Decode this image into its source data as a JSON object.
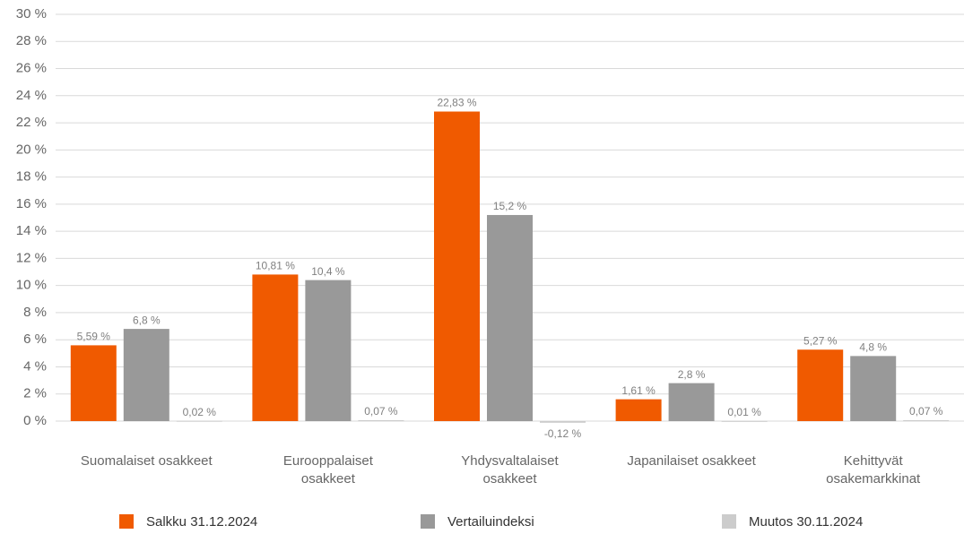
{
  "chart_data": {
    "type": "bar",
    "categories": [
      "Suomalaiset osakkeet",
      "Eurooppalaiset osakkeet",
      "Yhdysvaltalaiset osakkeet",
      "Japanilaiset osakkeet",
      "Kehittyvät osakemarkkinat"
    ],
    "series": [
      {
        "name": "Salkku 31.12.2024",
        "color": "#f05a00",
        "values": [
          5.59,
          10.81,
          22.83,
          1.61,
          5.27
        ],
        "value_labels": [
          "5,59 %",
          "10,81 %",
          "22,83 %",
          "1,61 %",
          "5,27 %"
        ]
      },
      {
        "name": "Vertailuindeksi",
        "color": "#999999",
        "values": [
          6.8,
          10.4,
          15.2,
          2.8,
          4.8
        ],
        "value_labels": [
          "6,8 %",
          "10,4 %",
          "15,2 %",
          "2,8 %",
          "4,8 %"
        ]
      },
      {
        "name": "Muutos 30.11.2024",
        "color": "#cccccc",
        "values": [
          0.02,
          0.07,
          -0.12,
          0.01,
          0.07
        ],
        "value_labels": [
          "0,02 %",
          "0,07 %",
          "-0,12 %",
          "0,01 %",
          "0,07 %"
        ]
      }
    ],
    "ylim": [
      0,
      30
    ],
    "yticks": [
      {
        "value": 0,
        "label": "0 %"
      },
      {
        "value": 2,
        "label": "2 %"
      },
      {
        "value": 4,
        "label": "4 %"
      },
      {
        "value": 6,
        "label": "6 %"
      },
      {
        "value": 8,
        "label": "8 %"
      },
      {
        "value": 10,
        "label": "10 %"
      },
      {
        "value": 12,
        "label": "12 %"
      },
      {
        "value": 14,
        "label": "14 %"
      },
      {
        "value": 16,
        "label": "16 %"
      },
      {
        "value": 18,
        "label": "18 %"
      },
      {
        "value": 20,
        "label": "20 %"
      },
      {
        "value": 22,
        "label": "22 %"
      },
      {
        "value": 24,
        "label": "24 %"
      },
      {
        "value": 26,
        "label": "26 %"
      },
      {
        "value": 28,
        "label": "28 %"
      },
      {
        "value": 30,
        "label": "30 %"
      }
    ],
    "grid": true,
    "legend": "bottom"
  }
}
